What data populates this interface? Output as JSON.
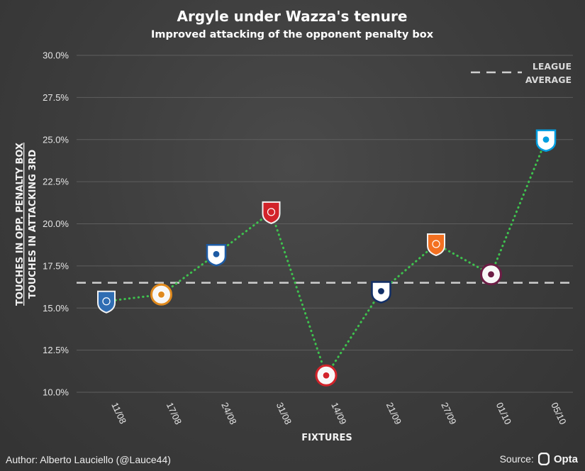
{
  "chart_data": {
    "type": "line",
    "title": "Argyle under Wazza's tenure",
    "subtitle": "Improved attacking of the opponent penalty box",
    "xlabel": "FIXTURES",
    "ylabel_top": "TOUCHES IN OPP. PENALTY BOX",
    "ylabel_bottom": "TOUCHES IN ATTACKING 3RD",
    "categories": [
      "11/08",
      "17/08",
      "24/08",
      "31/08",
      "14/09",
      "21/09",
      "27/09",
      "01/10",
      "05/10"
    ],
    "values": [
      15.4,
      15.8,
      18.2,
      20.7,
      11.0,
      16.0,
      18.8,
      17.0,
      25.0
    ],
    "ylim": [
      10.0,
      30.0
    ],
    "yticks": [
      10.0,
      12.5,
      15.0,
      17.5,
      20.0,
      22.5,
      25.0,
      27.5,
      30.0
    ],
    "ytick_labels": [
      "10.0%",
      "12.5%",
      "15.0%",
      "17.5%",
      "20.0%",
      "22.5%",
      "25.0%",
      "27.5%",
      "30.0%"
    ],
    "league_average": 16.5,
    "legend": {
      "line1": "LEAGUE",
      "line2": "AVERAGE",
      "placement": "top-right"
    },
    "grid": true,
    "line_style": "dotted",
    "colors": {
      "line": "#3ec24e",
      "average": "#cfcfcf",
      "background": "#3d3d3d"
    },
    "point_badges": [
      {
        "name": "owl-crest-icon",
        "color": "#2f6db3"
      },
      {
        "name": "tiger-crest-icon",
        "color": "#e08a1e"
      },
      {
        "name": "hoops-crest-icon",
        "color": "#1d5ba4"
      },
      {
        "name": "stripes-crest-icon",
        "color": "#d2232a"
      },
      {
        "name": "sunderland-crest-icon",
        "color": "#d2232a"
      },
      {
        "name": "albion-crest-icon",
        "color": "#122f67"
      },
      {
        "name": "hatters-crest-icon",
        "color": "#f37021"
      },
      {
        "name": "claret-crest-icon",
        "color": "#6c1d45"
      },
      {
        "name": "rose-crest-icon",
        "color": "#009ee0"
      }
    ]
  },
  "footer": {
    "author": "Author: Alberto Lauciello (@Lauce44)",
    "source_label": "Source:",
    "source_brand": "Opta"
  }
}
